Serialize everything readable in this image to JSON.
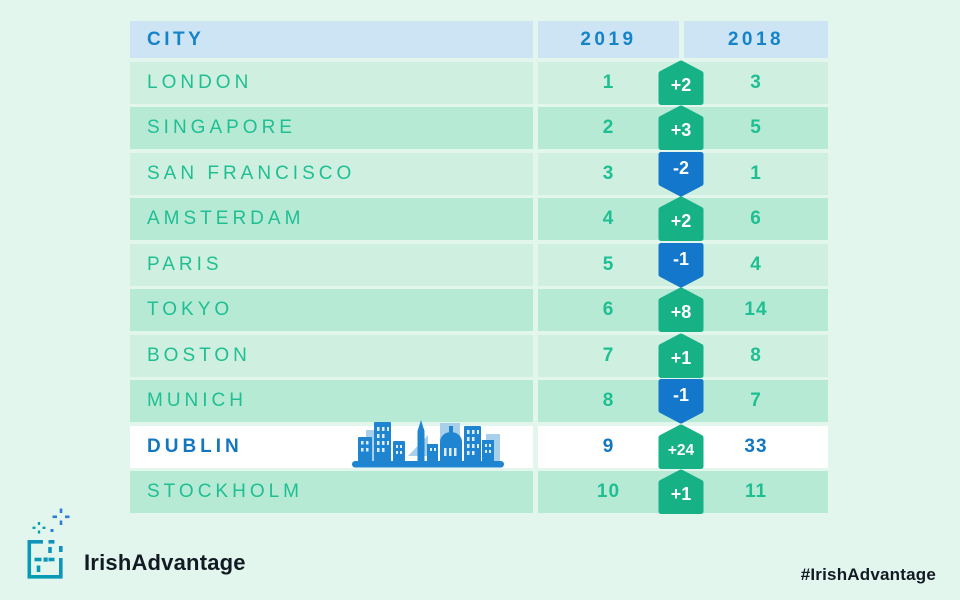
{
  "header": {
    "city": "CITY",
    "col2019": "2019",
    "col2018": "2018"
  },
  "rows": [
    {
      "city": "LONDON",
      "rank_2019": "1",
      "change": "+2",
      "direction": "up",
      "rank_2018": "3",
      "shade": "light",
      "highlight": false
    },
    {
      "city": "SINGAPORE",
      "rank_2019": "2",
      "change": "+3",
      "direction": "up",
      "rank_2018": "5",
      "shade": "dark",
      "highlight": false
    },
    {
      "city": "SAN FRANCISCO",
      "rank_2019": "3",
      "change": "-2",
      "direction": "down",
      "rank_2018": "1",
      "shade": "light",
      "highlight": false
    },
    {
      "city": "AMSTERDAM",
      "rank_2019": "4",
      "change": "+2",
      "direction": "up",
      "rank_2018": "6",
      "shade": "dark",
      "highlight": false
    },
    {
      "city": "PARIS",
      "rank_2019": "5",
      "change": "-1",
      "direction": "down",
      "rank_2018": "4",
      "shade": "light",
      "highlight": false
    },
    {
      "city": "TOKYO",
      "rank_2019": "6",
      "change": "+8",
      "direction": "up",
      "rank_2018": "14",
      "shade": "dark",
      "highlight": false
    },
    {
      "city": "BOSTON",
      "rank_2019": "7",
      "change": "+1",
      "direction": "up",
      "rank_2018": "8",
      "shade": "light",
      "highlight": false
    },
    {
      "city": "MUNICH",
      "rank_2019": "8",
      "change": "-1",
      "direction": "down",
      "rank_2018": "7",
      "shade": "dark",
      "highlight": false
    },
    {
      "city": "DUBLIN",
      "rank_2019": "9",
      "change": "+24",
      "direction": "up",
      "rank_2018": "33",
      "shade": "light",
      "highlight": true
    },
    {
      "city": "STOCKHOLM",
      "rank_2019": "10",
      "change": "+1",
      "direction": "up",
      "rank_2018": "11",
      "shade": "dark",
      "highlight": false
    }
  ],
  "footer": {
    "brand": "IrishAdvantage",
    "hashtag": "#IrishAdvantage"
  },
  "icons": {
    "badge_up": "pentagon-arrow-up-icon",
    "badge_down": "pentagon-arrow-down-icon",
    "skyline": "dublin-skyline-illustration",
    "logo": "irish-advantage-logo-icon"
  },
  "colors": {
    "background": "#e3f6ee",
    "header_bg": "#cde4f5",
    "header_text": "#1583c8",
    "row_light_bg": "#cff0e1",
    "row_dark_bg": "#b6ead5",
    "highlight_row_bg": "#ffffff",
    "city_text_green": "#1fbf92",
    "highlight_text_blue": "#1377c0",
    "badge_up_bg": "#16b286",
    "badge_down_bg": "#1377cb",
    "badge_text": "#ffffff",
    "skyline_blue": "#1f85d1",
    "skyline_light_blue": "#a9d0ea",
    "brand_text": "#121a24",
    "logo_teal": "#00a0ad",
    "logo_blue": "#2a7fd4"
  }
}
